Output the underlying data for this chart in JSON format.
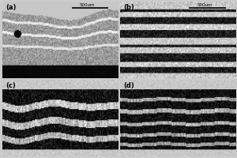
{
  "labels": [
    "(a)",
    "(b)",
    "(c)",
    "(d)"
  ],
  "scale_bar_text": "500um",
  "fig_width": 3.0,
  "fig_height": 2.0,
  "dpi": 100,
  "outer_bg": "#cccccc",
  "panel_margin_color": "#c8c8c8"
}
